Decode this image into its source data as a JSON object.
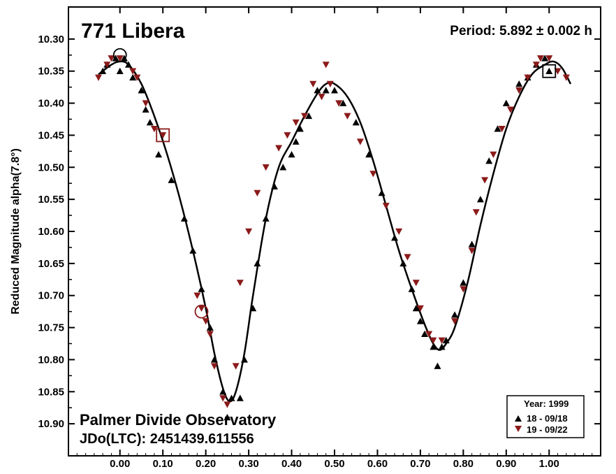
{
  "chart_data": {
    "type": "scatter",
    "title": "771 Libera",
    "period_label": "Period: 5.892 ± 0.002 h",
    "ylabel": "Reduced Magnitude alpha(7.8°)",
    "xlabel": "",
    "observatory": "Palmer Divide Observatory",
    "jd_label": "JDo(LTC): 2451439.611556",
    "xlim": [
      -0.12,
      1.12
    ],
    "ylim": [
      10.95,
      10.25
    ],
    "y_inverted": true,
    "x_ticks": [
      "0.00",
      "0.10",
      "0.20",
      "0.30",
      "0.40",
      "0.50",
      "0.60",
      "0.70",
      "0.80",
      "0.90",
      "1.00"
    ],
    "x_tick_values": [
      0.0,
      0.1,
      0.2,
      0.3,
      0.4,
      0.5,
      0.6,
      0.7,
      0.8,
      0.9,
      1.0
    ],
    "y_ticks": [
      "10.30",
      "10.35",
      "10.40",
      "10.45",
      "10.50",
      "10.55",
      "10.60",
      "10.65",
      "10.70",
      "10.75",
      "10.80",
      "10.85",
      "10.90"
    ],
    "y_tick_values": [
      10.3,
      10.35,
      10.4,
      10.45,
      10.5,
      10.55,
      10.6,
      10.65,
      10.7,
      10.75,
      10.8,
      10.85,
      10.9
    ],
    "legend": {
      "title": "Year: 1999",
      "placement": "bottom-right",
      "entries": [
        "18 - 09/18",
        "19 - 09/22"
      ]
    },
    "series": [
      {
        "name": "18 - 09/18",
        "marker": "triangle-up",
        "color": "#000000",
        "x": [
          -0.04,
          -0.03,
          -0.01,
          0.0,
          0.01,
          0.02,
          0.03,
          0.05,
          0.06,
          0.07,
          0.09,
          0.12,
          0.15,
          0.17,
          0.19,
          0.21,
          0.22,
          0.24,
          0.25,
          0.26,
          0.28,
          0.29,
          0.31,
          0.32,
          0.34,
          0.36,
          0.38,
          0.4,
          0.41,
          0.42,
          0.44,
          0.46,
          0.48,
          0.5,
          0.52,
          0.55,
          0.58,
          0.61,
          0.64,
          0.66,
          0.68,
          0.69,
          0.7,
          0.71,
          0.73,
          0.74,
          0.75,
          0.76,
          0.78,
          0.8,
          0.82,
          0.84,
          0.86,
          0.88,
          0.9,
          0.93,
          0.95,
          0.97,
          0.99,
          1.0
        ],
        "y": [
          10.35,
          10.34,
          10.33,
          10.35,
          10.33,
          10.34,
          10.36,
          10.38,
          10.41,
          10.43,
          10.48,
          10.52,
          10.58,
          10.63,
          10.69,
          10.75,
          10.8,
          10.85,
          10.89,
          10.86,
          10.86,
          10.8,
          10.72,
          10.65,
          10.58,
          10.53,
          10.5,
          10.48,
          10.46,
          10.44,
          10.42,
          10.38,
          10.38,
          10.38,
          10.4,
          10.43,
          10.48,
          10.54,
          10.61,
          10.65,
          10.69,
          10.72,
          10.74,
          10.76,
          10.78,
          10.81,
          10.78,
          10.77,
          10.73,
          10.68,
          10.62,
          10.55,
          10.49,
          10.44,
          10.4,
          10.37,
          10.36,
          10.34,
          10.33,
          10.35
        ]
      },
      {
        "name": "19 - 09/22",
        "marker": "triangle-down",
        "color": "#8b1a1a",
        "x": [
          -0.05,
          -0.03,
          -0.02,
          0.0,
          0.03,
          0.04,
          0.06,
          0.08,
          0.1,
          0.18,
          0.19,
          0.2,
          0.21,
          0.22,
          0.24,
          0.25,
          0.27,
          0.28,
          0.3,
          0.32,
          0.34,
          0.37,
          0.39,
          0.41,
          0.43,
          0.45,
          0.47,
          0.48,
          0.49,
          0.51,
          0.53,
          0.56,
          0.59,
          0.62,
          0.65,
          0.67,
          0.69,
          0.7,
          0.72,
          0.73,
          0.75,
          0.78,
          0.8,
          0.82,
          0.83,
          0.85,
          0.87,
          0.89,
          0.91,
          0.93,
          0.95,
          0.97,
          0.98,
          1.0,
          1.02,
          1.04
        ],
        "y": [
          10.36,
          10.34,
          10.33,
          10.33,
          10.35,
          10.36,
          10.4,
          10.44,
          10.45,
          10.7,
          10.72,
          10.74,
          10.76,
          10.81,
          10.86,
          10.87,
          10.81,
          10.68,
          10.6,
          10.54,
          10.5,
          10.47,
          10.45,
          10.43,
          10.42,
          10.37,
          10.39,
          10.34,
          10.37,
          10.4,
          10.42,
          10.46,
          10.51,
          10.56,
          10.6,
          10.64,
          10.68,
          10.72,
          10.76,
          10.77,
          10.77,
          10.74,
          10.69,
          10.63,
          10.57,
          10.52,
          10.48,
          10.44,
          10.41,
          10.38,
          10.36,
          10.34,
          10.33,
          10.33,
          10.35,
          10.36
        ]
      }
    ],
    "fit_curve": {
      "x": [
        -0.05,
        -0.02,
        0.0,
        0.02,
        0.05,
        0.08,
        0.11,
        0.14,
        0.17,
        0.2,
        0.22,
        0.24,
        0.255,
        0.27,
        0.29,
        0.31,
        0.34,
        0.37,
        0.4,
        0.43,
        0.46,
        0.48,
        0.5,
        0.53,
        0.56,
        0.59,
        0.62,
        0.65,
        0.68,
        0.71,
        0.73,
        0.745,
        0.76,
        0.78,
        0.81,
        0.84,
        0.87,
        0.9,
        0.93,
        0.96,
        0.99,
        1.01,
        1.03,
        1.05
      ],
      "y": [
        10.355,
        10.34,
        10.335,
        10.34,
        10.37,
        10.42,
        10.48,
        10.55,
        10.63,
        10.72,
        10.79,
        10.845,
        10.865,
        10.85,
        10.79,
        10.7,
        10.58,
        10.5,
        10.46,
        10.42,
        10.385,
        10.37,
        10.37,
        10.39,
        10.43,
        10.49,
        10.56,
        10.63,
        10.69,
        10.745,
        10.775,
        10.785,
        10.775,
        10.75,
        10.68,
        10.59,
        10.51,
        10.44,
        10.39,
        10.355,
        10.34,
        10.335,
        10.345,
        10.37
      ]
    },
    "annotations": [
      {
        "shape": "circle",
        "x": 0.0,
        "y": 10.325,
        "color": "#000000"
      },
      {
        "shape": "square",
        "x": 0.1,
        "y": 10.45,
        "color": "#8b1a1a"
      },
      {
        "shape": "circle",
        "x": 0.19,
        "y": 10.725,
        "color": "#8b1a1a"
      },
      {
        "shape": "square",
        "x": 1.0,
        "y": 10.35,
        "color": "#000000"
      }
    ]
  }
}
